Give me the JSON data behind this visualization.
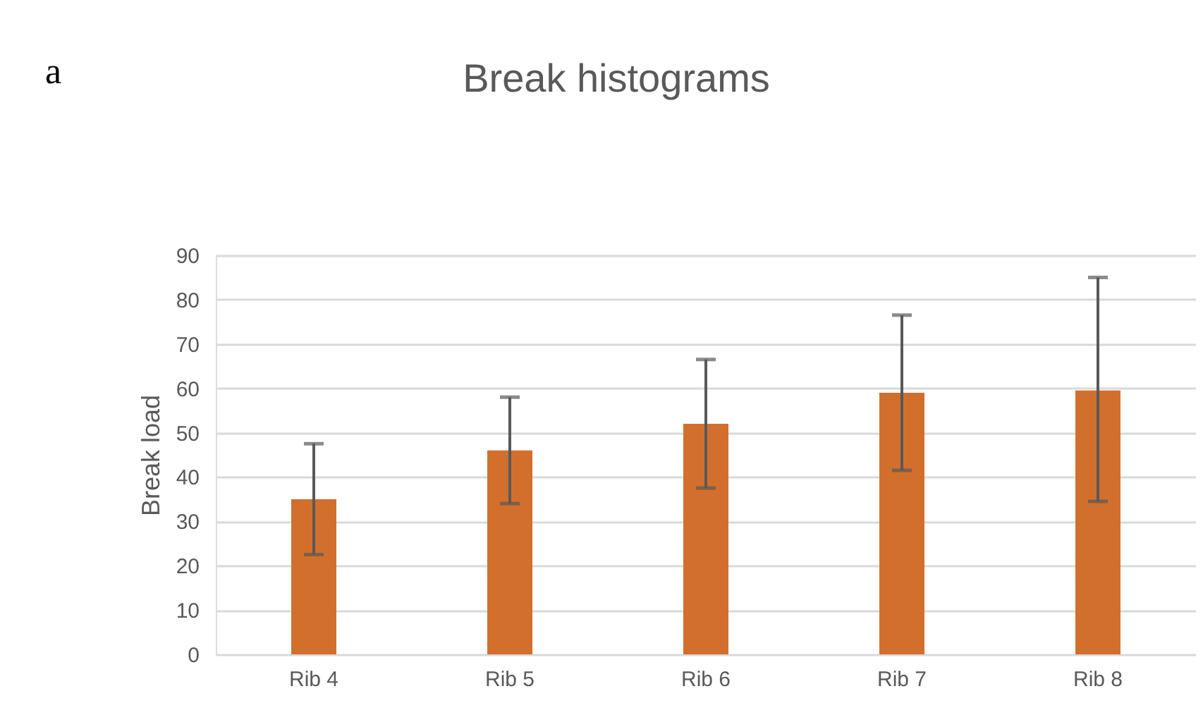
{
  "chart_data": {
    "type": "bar",
    "title": "Break histograms",
    "ylabel": "Break load",
    "annotations": [
      "a"
    ],
    "categories": [
      "Rib 4",
      "Rib 5",
      "Rib 6",
      "Rib 7",
      "Rib 8"
    ],
    "values": [
      35,
      46,
      52,
      59,
      59.5
    ],
    "errors": [
      [
        22.5,
        47.5
      ],
      [
        34,
        58
      ],
      [
        37.5,
        66.5
      ],
      [
        41.5,
        76.5
      ],
      [
        34.5,
        85
      ]
    ],
    "color": "#d36f2c",
    "ylim": [
      0,
      90
    ],
    "yticks": [
      0,
      10,
      20,
      30,
      40,
      50,
      60,
      70,
      80,
      90
    ],
    "grid": "y"
  }
}
